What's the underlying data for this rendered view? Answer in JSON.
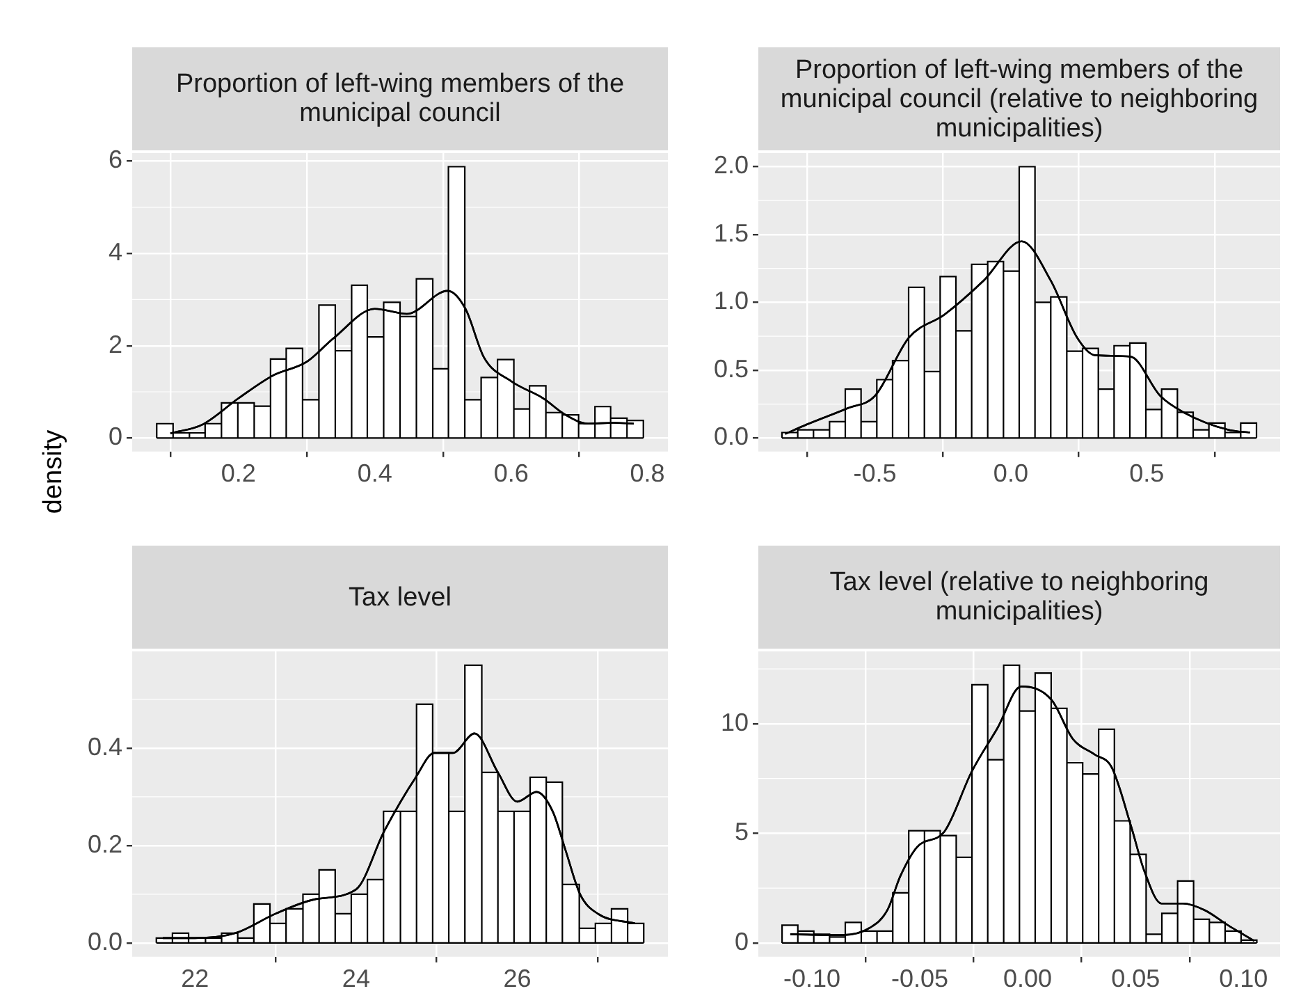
{
  "chart_data": [
    {
      "type": "histogram",
      "title": "Proportion of left-wing members of the municipal council",
      "ylabel": "density",
      "color": "#ffffff",
      "bins": [
        0.08,
        0.104,
        0.128,
        0.151,
        0.175,
        0.199,
        0.223,
        0.247,
        0.27,
        0.294,
        0.318,
        0.342,
        0.366,
        0.389,
        0.413,
        0.437,
        0.461,
        0.485,
        0.508,
        0.532,
        0.556,
        0.58,
        0.604,
        0.627,
        0.651,
        0.675,
        0.699,
        0.723,
        0.746,
        0.77,
        0.794
      ],
      "values": [
        0.31,
        0.11,
        0.11,
        0.31,
        0.76,
        0.76,
        0.69,
        1.71,
        1.94,
        0.83,
        2.88,
        1.89,
        3.31,
        2.19,
        2.94,
        2.63,
        3.45,
        1.5,
        5.88,
        0.83,
        1.31,
        1.7,
        0.63,
        1.13,
        0.55,
        0.5,
        0.31,
        0.68,
        0.43,
        0.38
      ],
      "series": [
        {
          "type": "line",
          "color": "#000000",
          "x": [
            0.1,
            0.147,
            0.2,
            0.25,
            0.3,
            0.34,
            0.4,
            0.447,
            0.507,
            0.533,
            0.56,
            0.6,
            0.647,
            0.68,
            0.713,
            0.75,
            0.78
          ],
          "values": [
            0.1,
            0.29,
            0.86,
            1.35,
            1.65,
            2.17,
            2.8,
            2.69,
            3.19,
            2.8,
            1.75,
            1.23,
            0.86,
            0.5,
            0.31,
            0.33,
            0.31
          ]
        }
      ],
      "xlim": [
        0.044,
        0.83
      ],
      "ylim": [
        -0.294,
        6.174
      ],
      "xticks": [
        0.2,
        0.4,
        0.6,
        0.8
      ],
      "yticks": [
        0,
        2,
        4,
        6
      ],
      "grid": true
    },
    {
      "type": "histogram",
      "title": "Proportion of left-wing members of the municipal council (relative to neighboring municipalities)",
      "color": "#ffffff",
      "bins": [
        -0.842,
        -0.784,
        -0.726,
        -0.667,
        -0.609,
        -0.551,
        -0.493,
        -0.435,
        -0.376,
        -0.318,
        -0.26,
        -0.202,
        -0.144,
        -0.085,
        -0.027,
        0.031,
        0.089,
        0.147,
        0.206,
        0.264,
        0.322,
        0.38,
        0.438,
        0.497,
        0.555,
        0.613,
        0.671,
        0.729,
        0.788,
        0.846,
        0.904
      ],
      "values": [
        0.04,
        0.06,
        0.06,
        0.12,
        0.36,
        0.12,
        0.43,
        0.57,
        1.11,
        0.49,
        1.19,
        0.79,
        1.28,
        1.3,
        1.23,
        2.0,
        1.0,
        1.04,
        0.64,
        0.66,
        0.36,
        0.68,
        0.7,
        0.21,
        0.36,
        0.19,
        0.06,
        0.11,
        0.04,
        0.11
      ],
      "series": [
        {
          "type": "line",
          "color": "#000000",
          "x": [
            -0.83,
            -0.75,
            -0.6,
            -0.5,
            -0.375,
            -0.244,
            -0.1,
            0.04,
            0.147,
            0.244,
            0.31,
            0.44,
            0.55,
            0.635,
            0.8,
            0.88
          ],
          "values": [
            0.03,
            0.1,
            0.22,
            0.31,
            0.74,
            0.91,
            1.16,
            1.45,
            1.16,
            0.74,
            0.61,
            0.6,
            0.31,
            0.19,
            0.06,
            0.04
          ]
        }
      ],
      "xlim": [
        -0.929,
        0.991
      ],
      "ylim": [
        -0.1,
        2.1
      ],
      "xticks": [
        {
          "value": -0.5,
          "label": "-0.5"
        },
        {
          "value": 0,
          "label": "0.0"
        },
        {
          "value": 0.5,
          "label": "0.5"
        }
      ],
      "yticks": [
        {
          "value": 0,
          "label": "0.0"
        },
        {
          "value": 0.5,
          "label": "0.5"
        },
        {
          "value": 1,
          "label": "1.0"
        },
        {
          "value": 1.5,
          "label": "1.5"
        },
        {
          "value": 2,
          "label": "2.0"
        }
      ],
      "grid": true
    },
    {
      "type": "histogram",
      "title": "Tax level",
      "color": "#ffffff",
      "bins": [
        21.52,
        21.72,
        21.92,
        22.13,
        22.33,
        22.53,
        22.73,
        22.93,
        23.13,
        23.34,
        23.54,
        23.74,
        23.94,
        24.14,
        24.34,
        24.55,
        24.75,
        24.95,
        25.15,
        25.35,
        25.56,
        25.76,
        25.96,
        26.16,
        26.36,
        26.56,
        26.77,
        26.97,
        27.17,
        27.37,
        27.57
      ],
      "values": [
        0.01,
        0.02,
        0.01,
        0.01,
        0.02,
        0.01,
        0.08,
        0.04,
        0.07,
        0.1,
        0.15,
        0.06,
        0.1,
        0.13,
        0.27,
        0.27,
        0.49,
        0.39,
        0.27,
        0.57,
        0.35,
        0.27,
        0.27,
        0.34,
        0.33,
        0.12,
        0.03,
        0.04,
        0.07,
        0.04
      ],
      "series": [
        {
          "type": "line",
          "color": "#000000",
          "x": [
            21.6,
            22,
            22.5,
            23,
            23.5,
            24,
            24.35,
            24.74,
            24.97,
            25.2,
            25.47,
            25.76,
            26,
            26.24,
            26.44,
            26.6,
            26.78,
            27,
            27.46
          ],
          "values": [
            0.01,
            0.01,
            0.02,
            0.06,
            0.09,
            0.11,
            0.23,
            0.34,
            0.39,
            0.39,
            0.43,
            0.35,
            0.29,
            0.31,
            0.27,
            0.19,
            0.1,
            0.06,
            0.04
          ]
        }
      ],
      "xlim": [
        21.22,
        27.87
      ],
      "ylim": [
        -0.0285,
        0.5985
      ],
      "xticks": [
        22,
        24,
        26
      ],
      "yticks": [
        {
          "value": 0,
          "label": "0.0"
        },
        {
          "value": 0.2,
          "label": "0.2"
        },
        {
          "value": 0.4,
          "label": "0.4"
        }
      ],
      "grid": true
    },
    {
      "type": "histogram",
      "title": "Tax level (relative to neighboring municipalities)",
      "color": "#ffffff",
      "bins": [
        -0.1138,
        -0.1065,
        -0.0991,
        -0.0918,
        -0.0845,
        -0.0771,
        -0.0698,
        -0.0625,
        -0.0551,
        -0.0478,
        -0.0405,
        -0.0331,
        -0.0258,
        -0.0185,
        -0.0111,
        -0.0038,
        0.0035,
        0.0109,
        0.0182,
        0.0255,
        0.0329,
        0.0402,
        0.0475,
        0.0549,
        0.0622,
        0.0695,
        0.0769,
        0.0842,
        0.0915,
        0.0989,
        0.1062
      ],
      "values": [
        0.81,
        0.54,
        0.4,
        0.27,
        0.94,
        0.54,
        0.54,
        2.29,
        5.12,
        5.12,
        4.9,
        3.91,
        11.78,
        8.36,
        12.67,
        10.58,
        12.31,
        10.7,
        8.22,
        7.71,
        9.75,
        5.57,
        4.04,
        0.4,
        1.35,
        2.83,
        1.08,
        0.94,
        0.54,
        0.13
      ],
      "series": [
        {
          "type": "line",
          "color": "#000000",
          "x": [
            -0.11,
            -0.086,
            -0.073,
            -0.065,
            -0.059,
            -0.051,
            -0.0386,
            -0.026,
            -0.014,
            -0.003,
            0.011,
            0.021,
            0.031,
            0.039,
            0.048,
            0.054,
            0.062,
            0.072,
            0.082,
            0.093,
            0.105
          ],
          "values": [
            0.4,
            0.36,
            0.7,
            1.5,
            3.05,
            4.4,
            5.08,
            7.8,
            9.8,
            11.7,
            11.1,
            9.3,
            8.6,
            8.0,
            5.3,
            3.3,
            1.8,
            1.8,
            1.5,
            0.8,
            0.1
          ]
        }
      ],
      "xlim": [
        -0.1248,
        0.117
      ],
      "ylim": [
        -0.63,
        13.3
      ],
      "xticks": [
        {
          "value": -0.1,
          "label": "-0.10"
        },
        {
          "value": -0.05,
          "label": "-0.05"
        },
        {
          "value": 0,
          "label": "0.00"
        },
        {
          "value": 0.05,
          "label": "0.05"
        },
        {
          "value": 0.1,
          "label": "0.10"
        }
      ],
      "yticks": [
        0,
        5,
        10
      ],
      "grid": true
    }
  ]
}
